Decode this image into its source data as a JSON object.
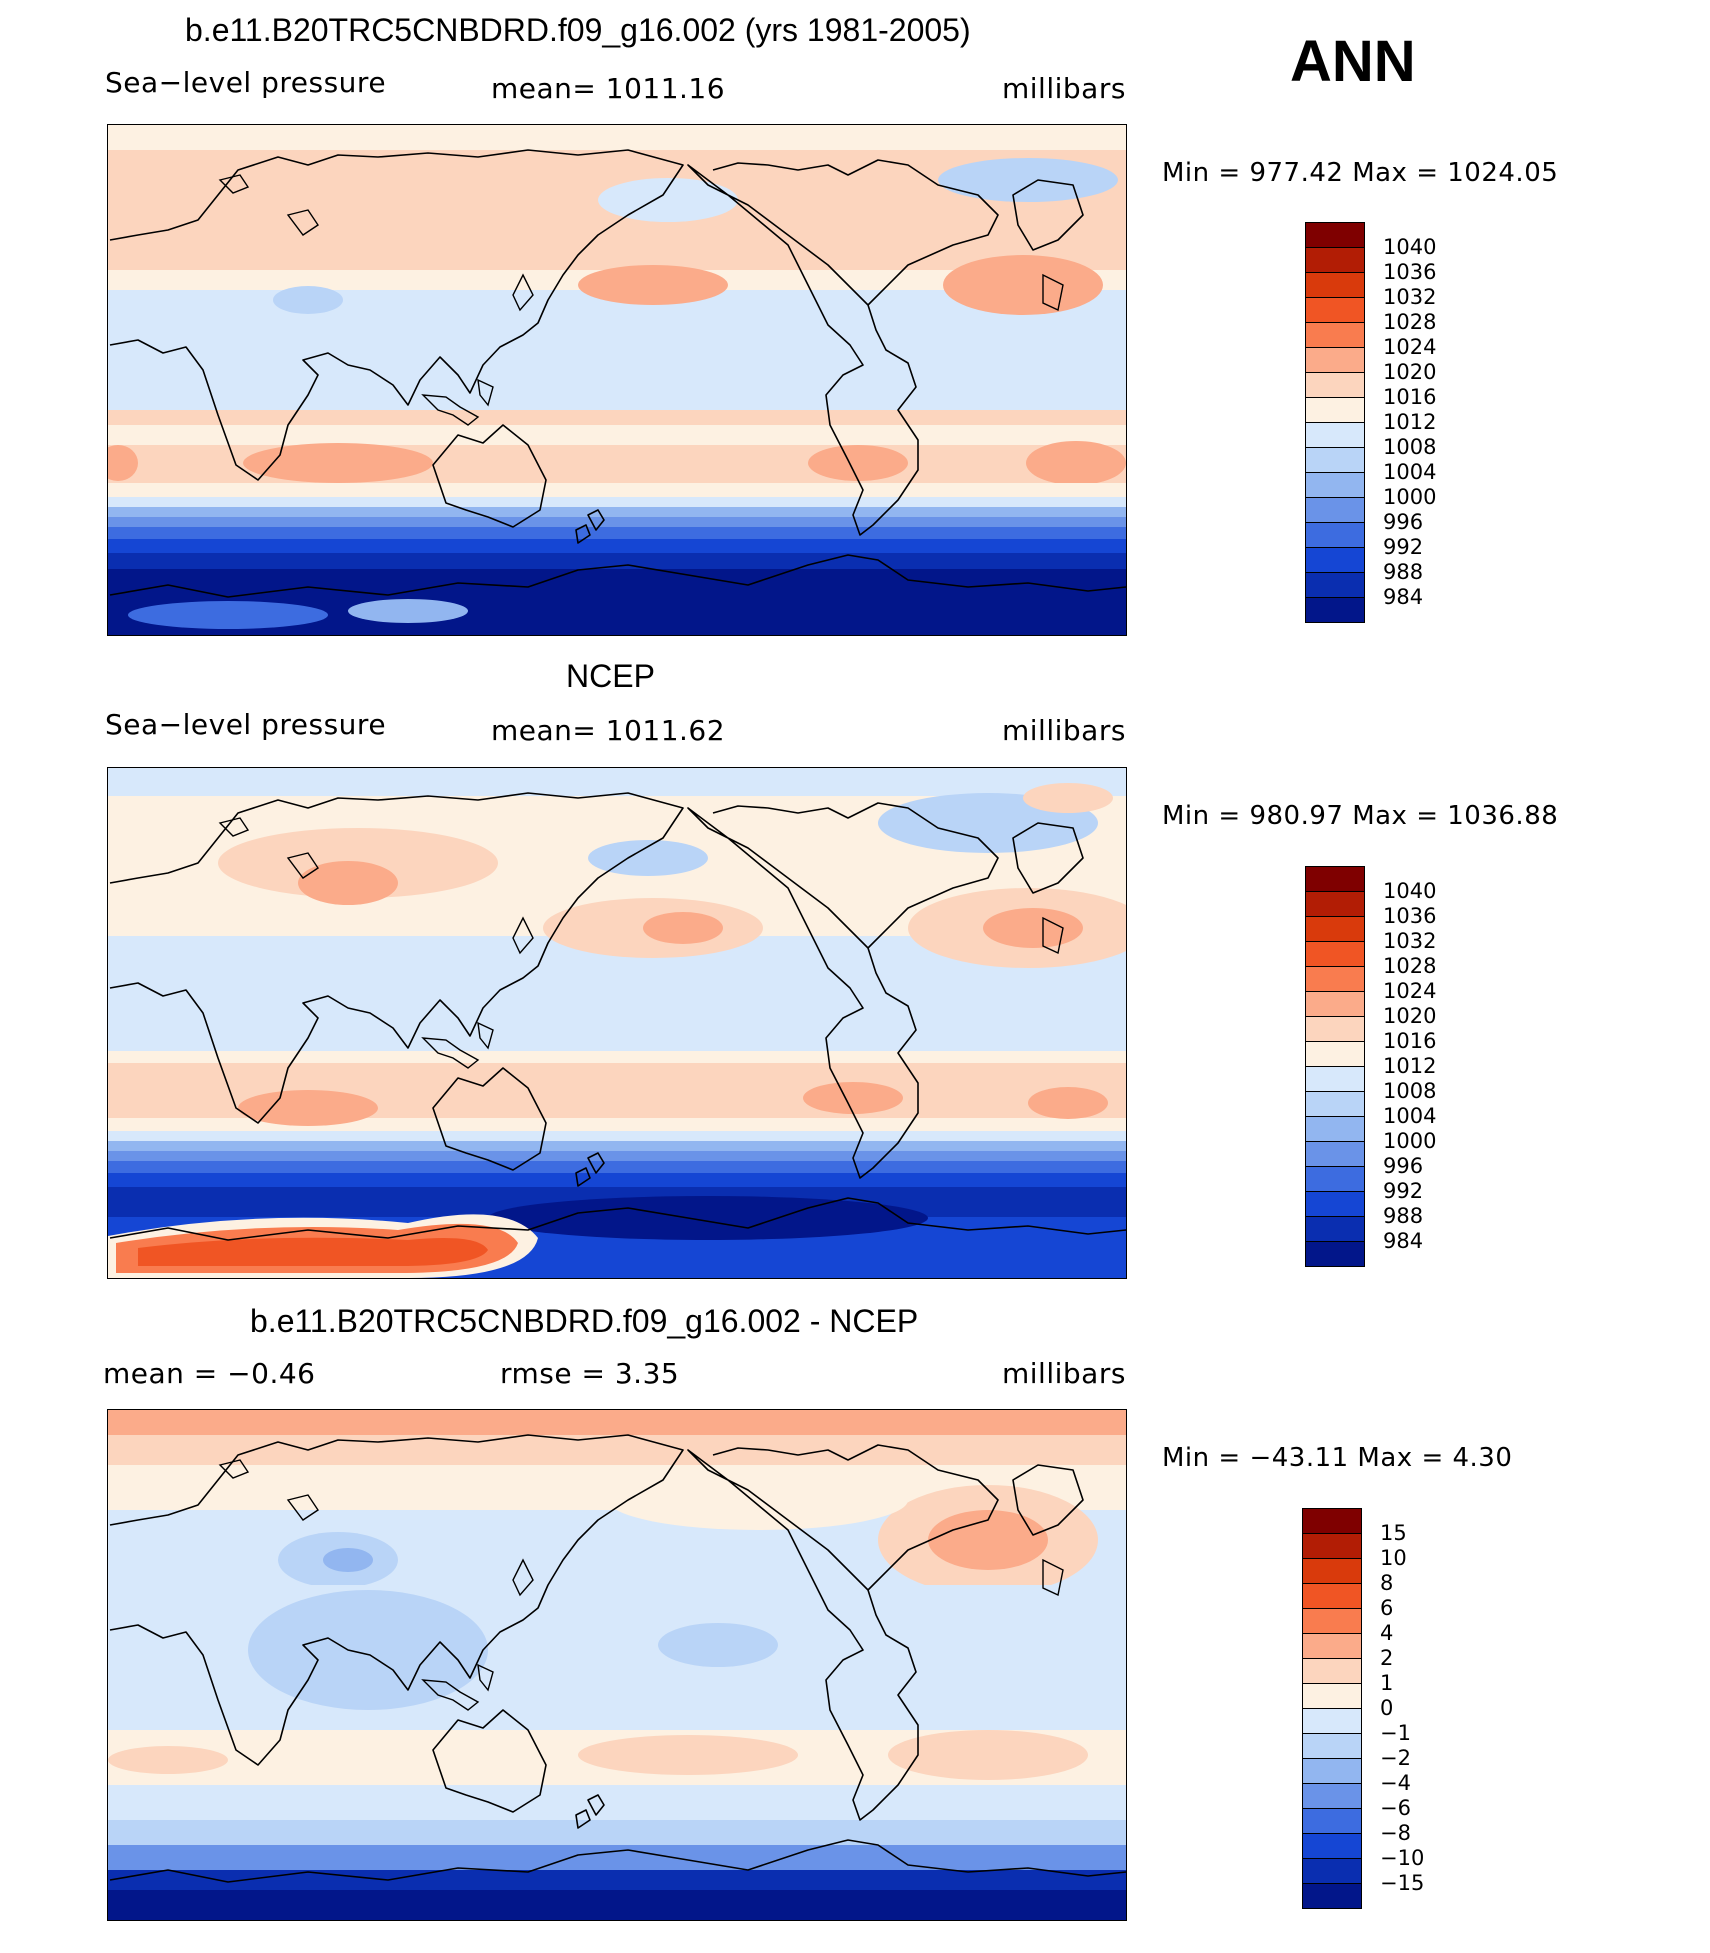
{
  "figure": {
    "season": "ANN"
  },
  "panels": [
    {
      "title": "b.e11.B20TRC5CNBDRD.f09_g16.002 (yrs 1981-2005)",
      "variable": "Sea−level pressure",
      "stat": "mean=  1011.16",
      "units": "millibars",
      "minmax": "Min  =  977.42  Max  =  1024.05",
      "map_kind": "model",
      "colorbar": [
        "1040",
        "1036",
        "1032",
        "1028",
        "1024",
        "1020",
        "1016",
        "1012",
        "1008",
        "1004",
        "1000",
        "996",
        "992",
        "988",
        "984"
      ]
    },
    {
      "title": "NCEP",
      "variable": "Sea−level pressure",
      "stat": "mean=  1011.62",
      "units": "millibars",
      "minmax": "Min  =  980.97  Max  =  1036.88",
      "map_kind": "obs",
      "colorbar": [
        "1040",
        "1036",
        "1032",
        "1028",
        "1024",
        "1020",
        "1016",
        "1012",
        "1008",
        "1004",
        "1000",
        "996",
        "992",
        "988",
        "984"
      ]
    },
    {
      "title": "b.e11.B20TRC5CNBDRD.f09_g16.002 - NCEP",
      "variable": "mean  =     −0.46",
      "stat": "rmse  =      3.35",
      "units": "millibars",
      "minmax": "Min  =  −43.11  Max  =      4.30",
      "map_kind": "diff",
      "colorbar": [
        "15",
        "10",
        "8",
        "6",
        "4",
        "2",
        "1",
        "0",
        "−1",
        "−2",
        "−4",
        "−6",
        "−8",
        "−10",
        "−15"
      ]
    }
  ],
  "colors": {
    "scale": [
      "#7f0000",
      "#b21d05",
      "#d93a0c",
      "#f05524",
      "#f97c4f",
      "#fbab8a",
      "#fcd5be",
      "#fdf1e2",
      "#d7e8fb",
      "#b9d4f7",
      "#92b6f0",
      "#6a93e8",
      "#3d6ce0",
      "#1546d4",
      "#0a2eb0",
      "#02168a"
    ]
  }
}
